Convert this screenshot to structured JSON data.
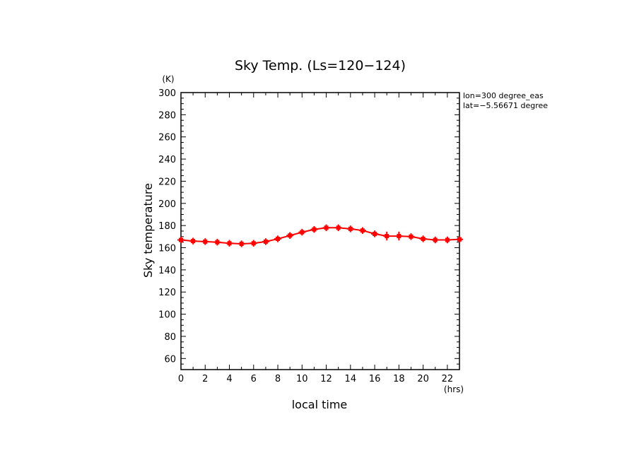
{
  "chart_data": {
    "type": "line",
    "title": "Sky Temp. (Ls=120−124)",
    "xlabel": "local time",
    "ylabel": "Sky temperature",
    "x_unit": "(hrs)",
    "y_unit": "(K)",
    "xlim": [
      0,
      23
    ],
    "ylim": [
      50,
      300
    ],
    "xticks": [
      0,
      2,
      4,
      6,
      8,
      10,
      12,
      14,
      16,
      18,
      20,
      22
    ],
    "yticks": [
      60,
      80,
      100,
      120,
      140,
      160,
      180,
      200,
      220,
      240,
      260,
      280,
      300
    ],
    "grid": false,
    "annotations": [
      "lon=300 degree_eas",
      "lat=−5.56671 degree"
    ],
    "series": [
      {
        "color": "#ff0000",
        "marker": "plus-with-errorbars",
        "x": [
          0,
          1,
          2,
          3,
          4,
          5,
          6,
          7,
          8,
          9,
          10,
          11,
          12,
          13,
          14,
          15,
          16,
          17,
          18,
          19,
          20,
          21,
          22,
          23
        ],
        "y": [
          167,
          166,
          165.5,
          165,
          164,
          163.5,
          164,
          165.5,
          168,
          171,
          174,
          176.5,
          178,
          178,
          177,
          175.5,
          172.5,
          170.5,
          170.5,
          170,
          168,
          167,
          167,
          167.5
        ],
        "error": [
          3,
          3,
          3,
          3,
          3,
          3,
          3,
          3,
          3,
          3,
          3,
          3,
          3,
          3,
          3,
          3,
          3,
          4,
          4,
          3,
          3,
          3,
          3,
          3
        ]
      }
    ]
  }
}
